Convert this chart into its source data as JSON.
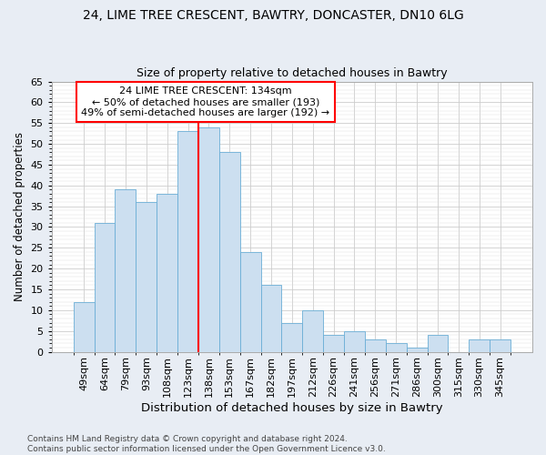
{
  "title1": "24, LIME TREE CRESCENT, BAWTRY, DONCASTER, DN10 6LG",
  "title2": "Size of property relative to detached houses in Bawtry",
  "xlabel": "Distribution of detached houses by size in Bawtry",
  "ylabel": "Number of detached properties",
  "categories": [
    "49sqm",
    "64sqm",
    "79sqm",
    "93sqm",
    "108sqm",
    "123sqm",
    "138sqm",
    "153sqm",
    "167sqm",
    "182sqm",
    "197sqm",
    "212sqm",
    "226sqm",
    "241sqm",
    "256sqm",
    "271sqm",
    "286sqm",
    "300sqm",
    "315sqm",
    "330sqm",
    "345sqm"
  ],
  "values": [
    12,
    31,
    39,
    36,
    38,
    53,
    54,
    48,
    24,
    16,
    7,
    10,
    4,
    5,
    3,
    2,
    1,
    4,
    0,
    3,
    3
  ],
  "bar_color": "#ccdff0",
  "bar_edge_color": "#6aaed6",
  "bar_width": 1.0,
  "vline_x": 6,
  "vline_color": "red",
  "annotation_text": "24 LIME TREE CRESCENT: 134sqm\n← 50% of detached houses are smaller (193)\n49% of semi-detached houses are larger (192) →",
  "annotation_box_color": "white",
  "annotation_box_edge": "red",
  "ylim": [
    0,
    65
  ],
  "yticks": [
    0,
    5,
    10,
    15,
    20,
    25,
    30,
    35,
    40,
    45,
    50,
    55,
    60,
    65
  ],
  "figure_bg": "#e8edf4",
  "plot_bg": "white",
  "footnote": "Contains HM Land Registry data © Crown copyright and database right 2024.\nContains public sector information licensed under the Open Government Licence v3.0.",
  "title1_fontsize": 10,
  "title2_fontsize": 9,
  "xlabel_fontsize": 9.5,
  "ylabel_fontsize": 8.5,
  "tick_fontsize": 8,
  "annot_fontsize": 8,
  "footnote_fontsize": 6.5
}
